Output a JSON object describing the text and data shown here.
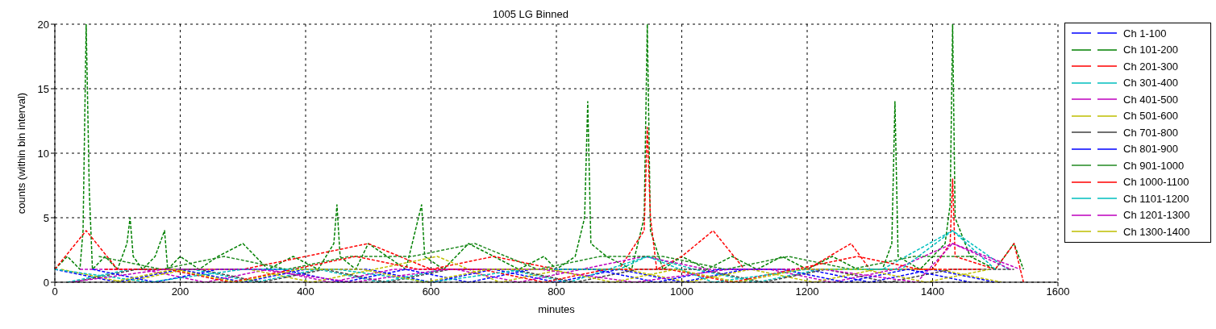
{
  "chart_data": {
    "type": "line",
    "title": "1005 LG Binned",
    "xlabel": "minutes",
    "ylabel": "counts (within bin interval)",
    "xlim": [
      0,
      1600
    ],
    "xticks": [
      0,
      200,
      400,
      600,
      800,
      1000,
      1200,
      1400,
      1600
    ],
    "ylim": [
      0,
      20
    ],
    "yticks": [
      0,
      5,
      10,
      15,
      20
    ],
    "grid": true,
    "legend": "right",
    "line_style": "dashed",
    "marker": "none",
    "series": [
      {
        "name": "Ch 1-100",
        "color": "#0000ff",
        "x": [
          0,
          100,
          200,
          300,
          400,
          500,
          600,
          700,
          800,
          900,
          1000,
          1100,
          1200,
          1300,
          1400,
          1500
        ],
        "values": [
          1,
          0,
          1,
          0,
          1,
          1,
          0,
          1,
          0,
          1,
          0,
          1,
          1,
          0,
          1,
          0
        ]
      },
      {
        "name": "Ch 101-200",
        "color": "#008000",
        "x": [
          0,
          20,
          40,
          45,
          50,
          55,
          60,
          80,
          100,
          115,
          120,
          125,
          140,
          160,
          175,
          180,
          200,
          230,
          260,
          300,
          340,
          380,
          420,
          445,
          450,
          455,
          480,
          500,
          530,
          560,
          585,
          590,
          620,
          660,
          700,
          740,
          780,
          800,
          830,
          845,
          850,
          855,
          880,
          920,
          940,
          945,
          950,
          970,
          1000,
          1040,
          1080,
          1120,
          1160,
          1200,
          1240,
          1280,
          1320,
          1335,
          1340,
          1345,
          1380,
          1420,
          1428,
          1432,
          1436,
          1460,
          1500,
          1530,
          1545
        ],
        "values": [
          1,
          2,
          1,
          4,
          20,
          7,
          1,
          2,
          1,
          3,
          5,
          2,
          1,
          2,
          4,
          1,
          2,
          1,
          2,
          3,
          1,
          2,
          1,
          3,
          6,
          2,
          1,
          3,
          2,
          1,
          6,
          2,
          1,
          3,
          2,
          1,
          2,
          1,
          2,
          5,
          14,
          3,
          2,
          1,
          5,
          20,
          4,
          1,
          2,
          1,
          2,
          1,
          2,
          1,
          2,
          1,
          1,
          3,
          14,
          2,
          1,
          3,
          6,
          20,
          5,
          2,
          1,
          3,
          1
        ]
      },
      {
        "name": "Ch 201-300",
        "color": "#ff0000",
        "x": [
          0,
          50,
          100,
          200,
          300,
          400,
          500,
          600,
          700,
          800,
          900,
          940,
          945,
          950,
          960,
          1000,
          1050,
          1100,
          1200,
          1270,
          1300,
          1400,
          1428,
          1432,
          1436,
          1500,
          1530,
          1545
        ],
        "values": [
          1,
          4,
          1,
          1,
          1,
          2,
          3,
          1,
          2,
          1,
          1,
          4,
          12,
          5,
          1,
          2,
          4,
          1,
          1,
          3,
          1,
          1,
          3,
          8,
          2,
          1,
          3,
          0
        ]
      },
      {
        "name": "Ch 301-400",
        "color": "#00bfbf",
        "x": [
          20,
          120,
          220,
          320,
          420,
          520,
          620,
          720,
          820,
          945,
          1020,
          1120,
          1220,
          1320,
          1432,
          1520
        ],
        "values": [
          0,
          1,
          1,
          0,
          1,
          0,
          1,
          1,
          0,
          2,
          1,
          0,
          1,
          1,
          4,
          1
        ]
      },
      {
        "name": "Ch 401-500",
        "color": "#bf00bf",
        "x": [
          40,
          140,
          240,
          340,
          440,
          540,
          640,
          740,
          840,
          940,
          1040,
          1140,
          1240,
          1340,
          1432,
          1540
        ],
        "values": [
          1,
          1,
          0,
          1,
          0,
          1,
          1,
          0,
          1,
          2,
          1,
          1,
          0,
          1,
          3,
          1
        ]
      },
      {
        "name": "Ch 501-600",
        "color": "#bfbf00",
        "x": [
          10,
          110,
          210,
          310,
          410,
          510,
          610,
          710,
          810,
          910,
          1010,
          1110,
          1210,
          1310,
          1410,
          1510
        ],
        "values": [
          1,
          0,
          1,
          1,
          0,
          1,
          2,
          0,
          1,
          1,
          0,
          1,
          0,
          1,
          1,
          0
        ]
      },
      {
        "name": "Ch 701-800",
        "color": "#404040",
        "x": [
          30,
          130,
          230,
          330,
          430,
          530,
          630,
          730,
          830,
          930,
          1030,
          1130,
          1230,
          1330,
          1430,
          1530
        ],
        "values": [
          0,
          1,
          1,
          0,
          1,
          0,
          1,
          1,
          0,
          1,
          1,
          0,
          1,
          0,
          1,
          1
        ]
      },
      {
        "name": "Ch 801-900",
        "color": "#0000ff",
        "x": [
          60,
          160,
          260,
          360,
          460,
          560,
          660,
          760,
          860,
          960,
          1060,
          1160,
          1260,
          1360,
          1460
        ],
        "values": [
          1,
          0,
          1,
          1,
          0,
          1,
          0,
          1,
          1,
          0,
          1,
          1,
          0,
          1,
          0
        ]
      },
      {
        "name": "Ch 901-1000",
        "color": "#228b22",
        "x": [
          70,
          170,
          270,
          370,
          470,
          570,
          670,
          770,
          870,
          970,
          1070,
          1170,
          1270,
          1370,
          1470
        ],
        "values": [
          2,
          1,
          2,
          1,
          2,
          2,
          3,
          1,
          2,
          2,
          1,
          2,
          1,
          2,
          2
        ]
      },
      {
        "name": "Ch 1000-1100",
        "color": "#ff0000",
        "x": [
          80,
          180,
          280,
          380,
          480,
          580,
          680,
          780,
          880,
          980,
          1080,
          1180,
          1280,
          1380,
          1480
        ],
        "values": [
          1,
          1,
          0,
          1,
          2,
          1,
          1,
          0,
          1,
          1,
          0,
          1,
          2,
          1,
          1
        ]
      },
      {
        "name": "Ch 1101-1200",
        "color": "#00bfbf",
        "x": [
          0,
          150,
          300,
          450,
          600,
          750,
          900,
          945,
          1050,
          1200,
          1350,
          1432,
          1500
        ],
        "values": [
          1,
          0,
          1,
          1,
          0,
          1,
          1,
          2,
          0,
          1,
          1,
          4,
          1
        ]
      },
      {
        "name": "Ch 1201-1300",
        "color": "#bf00bf",
        "x": [
          25,
          175,
          325,
          475,
          625,
          775,
          925,
          1075,
          1225,
          1375,
          1432,
          1525
        ],
        "values": [
          0,
          1,
          1,
          0,
          1,
          1,
          0,
          1,
          1,
          0,
          3,
          1
        ]
      },
      {
        "name": "Ch 1300-1400",
        "color": "#bfbf00",
        "x": [
          90,
          190,
          290,
          390,
          490,
          590,
          690,
          790,
          890,
          990,
          1090,
          1190,
          1290,
          1390,
          1490
        ],
        "values": [
          0,
          1,
          0,
          1,
          1,
          0,
          1,
          1,
          0,
          1,
          0,
          1,
          1,
          0,
          1
        ]
      }
    ]
  }
}
